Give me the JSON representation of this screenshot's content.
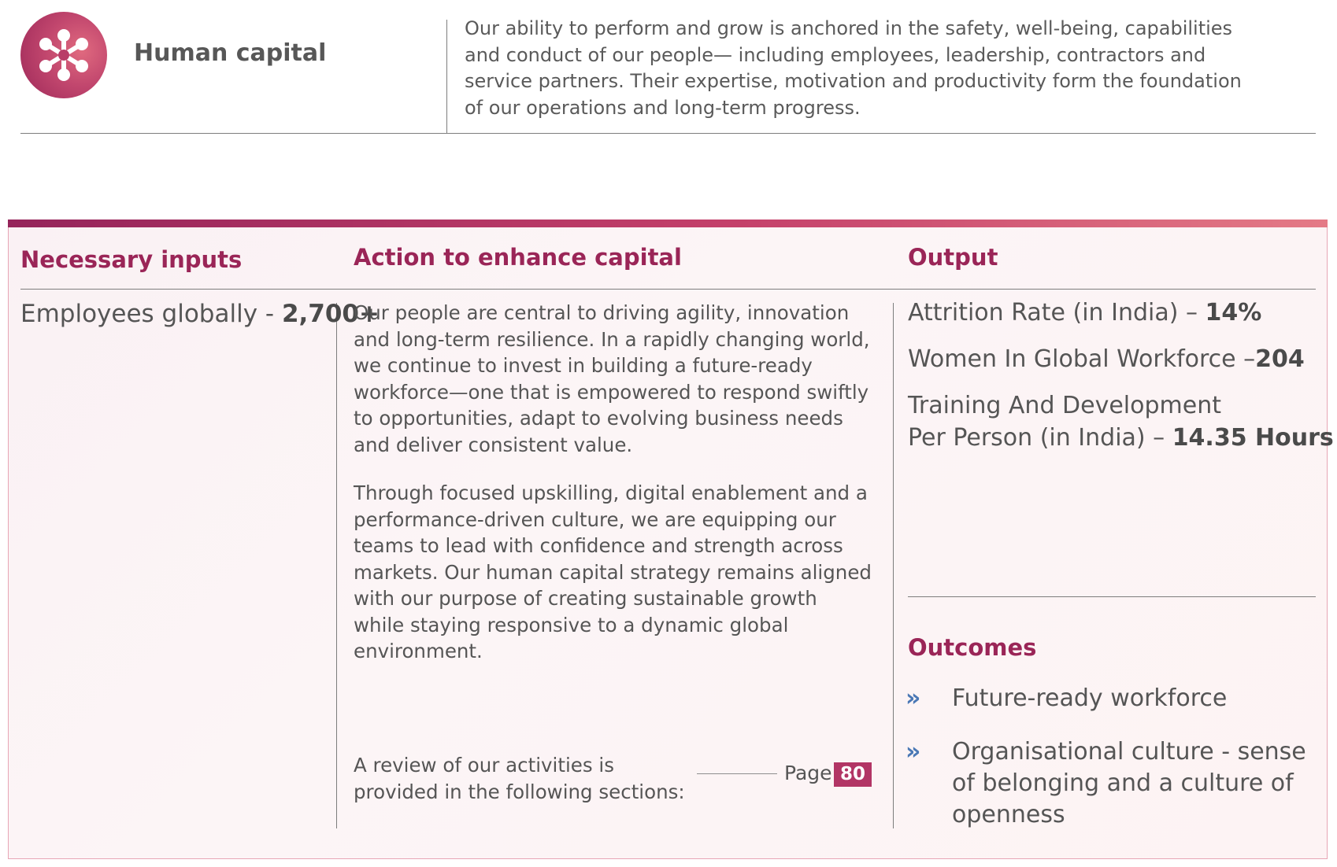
{
  "header": {
    "logo": "human-capital-network-icon",
    "title": "Human capital",
    "description": "Our ability to perform and grow is anchored in the safety, well-being, capabilities and conduct of our people— including employees, leadership, contractors and service partners. Their expertise, motivation and productivity form the foundation of our operations and long-term progress."
  },
  "panel": {
    "columns": {
      "inputs": "Necessary inputs",
      "action": "Action to enhance capital",
      "output": "Output"
    },
    "inputs": {
      "label": "Employees globally - ",
      "value": "2,700+"
    },
    "action": {
      "paragraphs": [
        "Our people are central to driving agility, innovation and long-term resilience. In a rapidly changing world, we continue to invest in building a future-ready workforce—one that is empowered to respond swiftly to opportunities, adapt to evolving business needs and deliver consistent value.",
        "Through focused upskilling, digital enablement and a performance-driven culture, we are equipping our teams to lead with confidence and strength across markets. Our human capital strategy remains aligned with our purpose of creating sustainable growth while staying responsive to a dynamic global environment."
      ],
      "review_text": "A review of our activities is provided in the following sections:",
      "page_label": "Page",
      "page_number": "80"
    },
    "output": {
      "items": [
        {
          "label": "Attrition Rate (in India) – ",
          "value": "14%"
        },
        {
          "label": "Women In Global Workforce –",
          "value": "204"
        },
        {
          "label_line1": "Training And Development",
          "label_line2": "Per Person (in India) – ",
          "value": "14.35 Hours"
        }
      ]
    },
    "outcomes": {
      "title": "Outcomes",
      "bullet": "»",
      "items": [
        "Future-ready workforce",
        "Organisational culture - sense of belonging and a culture of openness"
      ]
    }
  },
  "colors": {
    "accent": "#9a2557",
    "bar_start": "#95245a",
    "bar_end": "#e47a86",
    "badge": "#b23565",
    "bullet": "#4a78b5"
  }
}
